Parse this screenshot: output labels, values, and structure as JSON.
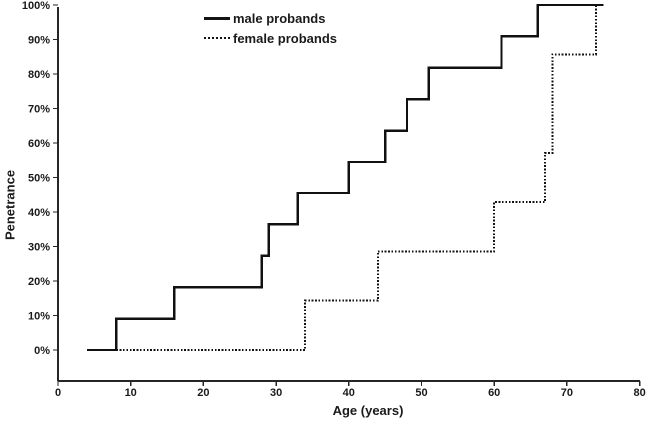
{
  "figure": {
    "background": "#ffffff",
    "axis_color": "#262626",
    "text_color": "#1a1a1a"
  },
  "chart_data": {
    "type": "line",
    "subtype": "step",
    "title": "",
    "xlabel": "Age (years)",
    "ylabel": "Penetrance",
    "xlim": [
      0,
      80
    ],
    "ylim": [
      0,
      100
    ],
    "grid": false,
    "legend_position": "top-center",
    "x_ticks": [
      "0",
      "10",
      "20",
      "30",
      "40",
      "50",
      "60",
      "70",
      "80"
    ],
    "x_tick_values": [
      0,
      10,
      20,
      30,
      40,
      50,
      60,
      70,
      80
    ],
    "y_ticks": [
      "0%",
      "10%",
      "20%",
      "30%",
      "40%",
      "50%",
      "60%",
      "70%",
      "80%",
      "90%",
      "100%"
    ],
    "y_tick_values": [
      0,
      10,
      20,
      30,
      40,
      50,
      60,
      70,
      80,
      90,
      100
    ],
    "series": [
      {
        "name": "male probands",
        "key": "male-probands",
        "line_style": "solid",
        "color": "#111111",
        "start": [
          4,
          0
        ],
        "steps": [
          [
            8,
            9.1
          ],
          [
            16,
            18.2
          ],
          [
            28,
            27.3
          ],
          [
            29,
            36.4
          ],
          [
            33,
            45.5
          ],
          [
            40,
            54.5
          ],
          [
            45,
            63.6
          ],
          [
            48,
            72.7
          ],
          [
            51,
            81.8
          ],
          [
            61,
            90.9
          ],
          [
            66,
            100
          ]
        ],
        "end_age": 75
      },
      {
        "name": "female probands",
        "key": "female-probands",
        "line_style": "dotted",
        "color": "#111111",
        "start": [
          8,
          0
        ],
        "steps": [
          [
            34,
            14.3
          ],
          [
            44,
            28.6
          ],
          [
            60,
            42.9
          ],
          [
            67,
            57.1
          ],
          [
            68,
            85.7
          ],
          [
            74,
            100
          ]
        ],
        "end_age": 75
      }
    ]
  }
}
